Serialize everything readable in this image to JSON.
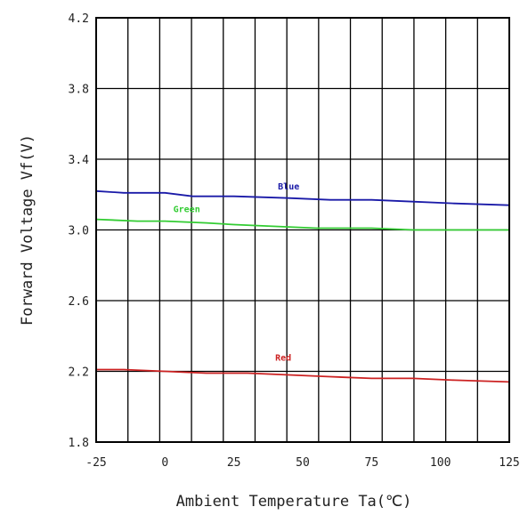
{
  "chart_data": {
    "type": "line",
    "title": "",
    "xlabel": "Ambient Temperature Ta(℃)",
    "ylabel": "Forward Voltage Vf(V)",
    "xlim": [
      -25,
      125
    ],
    "ylim": [
      1.8,
      4.2
    ],
    "x_ticks": [
      -25,
      0,
      25,
      50,
      75,
      100,
      125
    ],
    "x_tick_labels": [
      "-25",
      "0",
      "25",
      "50",
      "75",
      "100",
      "125"
    ],
    "y_ticks": [
      1.8,
      2.2,
      2.6,
      3.0,
      3.4,
      3.8,
      4.2
    ],
    "y_tick_labels": [
      "1.8",
      "2.2",
      "2.6",
      "3.0",
      "3.4",
      "3.8",
      "4.2"
    ],
    "grid": true,
    "legend": "none (inline series labels)",
    "series": [
      {
        "name": "Blue",
        "color": "#1a1aa8",
        "label_at": [
          41,
          3.23
        ],
        "points": [
          [
            -25,
            3.22
          ],
          [
            -15,
            3.21
          ],
          [
            0,
            3.21
          ],
          [
            10,
            3.19
          ],
          [
            25,
            3.19
          ],
          [
            45,
            3.18
          ],
          [
            60,
            3.17
          ],
          [
            75,
            3.17
          ],
          [
            90,
            3.16
          ],
          [
            105,
            3.15
          ],
          [
            125,
            3.14
          ]
        ]
      },
      {
        "name": "Green",
        "color": "#33cc33",
        "label_at": [
          3,
          3.1
        ],
        "points": [
          [
            -25,
            3.06
          ],
          [
            -10,
            3.05
          ],
          [
            0,
            3.05
          ],
          [
            15,
            3.04
          ],
          [
            25,
            3.03
          ],
          [
            40,
            3.02
          ],
          [
            55,
            3.01
          ],
          [
            75,
            3.01
          ],
          [
            90,
            3.0
          ],
          [
            105,
            3.0
          ],
          [
            125,
            3.0
          ]
        ]
      },
      {
        "name": "Red",
        "color": "#cc2222",
        "label_at": [
          40,
          2.26
        ],
        "points": [
          [
            -25,
            2.21
          ],
          [
            -15,
            2.21
          ],
          [
            0,
            2.2
          ],
          [
            15,
            2.19
          ],
          [
            30,
            2.19
          ],
          [
            45,
            2.18
          ],
          [
            60,
            2.17
          ],
          [
            75,
            2.16
          ],
          [
            90,
            2.16
          ],
          [
            105,
            2.15
          ],
          [
            125,
            2.14
          ]
        ]
      }
    ]
  }
}
